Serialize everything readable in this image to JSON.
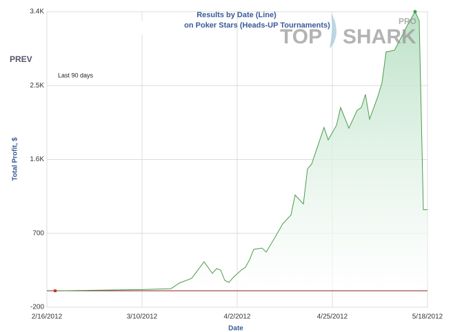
{
  "chart_data": {
    "type": "area",
    "title": "Results by Date (Line)",
    "subtitle": "on Poker Stars (Heads-UP Tournaments)",
    "nav_label": "PREV",
    "annotation": "Last 90 days",
    "logo_left": "TOP",
    "logo_right": "SHARK",
    "logo_badge": "PRO",
    "x_label": "Date",
    "y_label": "Total Profit, $",
    "color": "#4a9a4a",
    "fill": "#cfe9d6",
    "start_marker_color": "#d03020",
    "zero_line_color": "#8b1a1a",
    "grid": true,
    "x": [
      "2/18/2012",
      "3/10/2012",
      "3/17/2012",
      "3/19/2012",
      "3/22/2012",
      "3/23/2012",
      "3/25/2012",
      "3/27/2012",
      "3/28/2012",
      "3/29/2012",
      "3/30/2012",
      "3/31/2012",
      "4/1/2012",
      "4/3/2012",
      "4/4/2012",
      "4/5/2012",
      "4/6/2012",
      "4/8/2012",
      "4/9/2012",
      "4/11/2012",
      "4/13/2012",
      "4/15/2012",
      "4/16/2012",
      "4/18/2012",
      "4/19/2012",
      "4/20/2012",
      "4/23/2012",
      "4/24/2012",
      "4/26/2012",
      "4/27/2012",
      "4/29/2012",
      "5/1/2012",
      "5/2/2012",
      "5/3/2012",
      "5/4/2012",
      "5/6/2012",
      "5/7/2012",
      "5/8/2012",
      "5/10/2012",
      "5/12/2012",
      "5/13/2012",
      "5/15/2012",
      "5/16/2012",
      "5/17/2012",
      "5/18/2012"
    ],
    "values": [
      0,
      15,
      26,
      94,
      152,
      219,
      353,
      211,
      270,
      253,
      127,
      102,
      160,
      253,
      287,
      379,
      505,
      521,
      471,
      639,
      815,
      924,
      1167,
      1058,
      1486,
      1545,
      1990,
      1839,
      2015,
      2233,
      1981,
      2199,
      2233,
      2392,
      2090,
      2367,
      2535,
      2912,
      2929,
      3122,
      3223,
      3400,
      3291,
      987,
      987
    ],
    "xlim": [
      "2/16/2012",
      "5/18/2012"
    ],
    "xticks": [
      "2/16/2012",
      "3/10/2012",
      "4/2/2012",
      "4/25/2012",
      "5/18/2012"
    ],
    "ylim": [
      -200,
      3400
    ],
    "yticks": [
      -200,
      700,
      {
        "value": 1600,
        "label": "1.6K"
      },
      {
        "value": 2500,
        "label": "2.5K"
      },
      {
        "value": 3400,
        "label": "3.4K"
      }
    ]
  }
}
